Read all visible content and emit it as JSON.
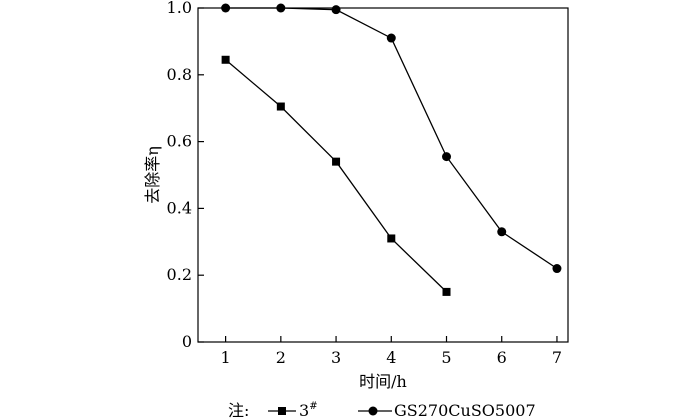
{
  "chart_data": {
    "type": "line",
    "xlabel": "时间/h",
    "ylabel": "去除率η",
    "xlim": [
      0.5,
      7.2
    ],
    "ylim": [
      0,
      1.0
    ],
    "xticks": [
      1,
      2,
      3,
      4,
      5,
      6,
      7
    ],
    "yticks": [
      0,
      0.2,
      0.4,
      0.6,
      0.8,
      1.0
    ],
    "xtick_labels": [
      "1",
      "2",
      "3",
      "4",
      "5",
      "6",
      "7"
    ],
    "ytick_labels": [
      "0",
      "0.2",
      "0.4",
      "0.6",
      "0.8",
      "1.0"
    ],
    "series": [
      {
        "name": "3#",
        "marker": "square",
        "x": [
          1,
          2,
          3,
          4,
          5
        ],
        "y": [
          0.845,
          0.705,
          0.54,
          0.31,
          0.15
        ]
      },
      {
        "name": "GS270CuSO5007",
        "marker": "circle",
        "x": [
          1,
          2,
          3,
          4,
          5,
          6,
          7
        ],
        "y": [
          1.0,
          1.0,
          0.995,
          0.91,
          0.555,
          0.33,
          0.22
        ]
      }
    ],
    "note_prefix": "注:",
    "legend": [
      {
        "marker": "square",
        "text": "3",
        "sup": "#"
      },
      {
        "marker": "circle",
        "text": "GS270CuSO5007"
      }
    ],
    "grid": false,
    "legend_position": "bottom"
  }
}
